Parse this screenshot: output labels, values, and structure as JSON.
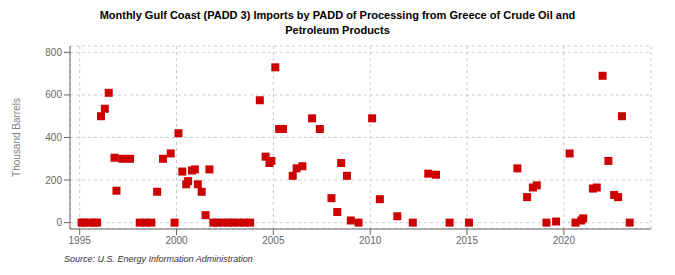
{
  "chart_data": {
    "type": "scatter",
    "title": "Monthly Gulf Coast (PADD 3) Imports by PADD of Processing from Greece of Crude Oil and\nPetroleum Products",
    "ylabel": "Thousand Barrels",
    "annotations": [
      "Source: U.S. Energy Information Administration"
    ],
    "color": "#cc0000",
    "marker": "square",
    "grid": true,
    "xlim": [
      1994.5,
      2024.5
    ],
    "ylim": [
      -30,
      830
    ],
    "xticks": [
      1995,
      2000,
      2005,
      2010,
      2015,
      2020
    ],
    "yticks": [
      0,
      200,
      400,
      600,
      800
    ],
    "x": [
      1995.1,
      1995.25,
      1995.5,
      1995.75,
      1995.9,
      1996.1,
      1996.3,
      1996.5,
      1996.8,
      1996.9,
      1997.2,
      1997.6,
      1998.1,
      1998.4,
      1998.7,
      1999.0,
      1999.3,
      1999.7,
      1999.9,
      2000.1,
      2000.3,
      2000.5,
      2000.6,
      2000.8,
      2000.95,
      2001.1,
      2001.3,
      2001.5,
      2001.7,
      2001.9,
      2002.1,
      2002.4,
      2002.7,
      2002.9,
      2003.2,
      2003.5,
      2003.8,
      2004.3,
      2004.6,
      2004.8,
      2004.9,
      2005.1,
      2005.3,
      2005.5,
      2006.0,
      2006.2,
      2006.5,
      2007.0,
      2007.4,
      2008.0,
      2008.3,
      2008.5,
      2008.8,
      2009.0,
      2009.4,
      2010.1,
      2010.5,
      2011.4,
      2012.2,
      2013.0,
      2013.4,
      2014.1,
      2015.1,
      2017.6,
      2018.1,
      2018.4,
      2018.6,
      2019.1,
      2019.6,
      2020.3,
      2020.6,
      2020.9,
      2021.0,
      2021.5,
      2021.7,
      2022.0,
      2022.3,
      2022.6,
      2022.8,
      2023.0,
      2023.4
    ],
    "values": [
      0,
      0,
      0,
      0,
      0,
      500,
      535,
      610,
      305,
      150,
      300,
      300,
      0,
      0,
      0,
      145,
      300,
      325,
      0,
      420,
      240,
      180,
      195,
      245,
      250,
      180,
      145,
      35,
      250,
      0,
      0,
      0,
      0,
      0,
      0,
      0,
      0,
      575,
      310,
      280,
      290,
      730,
      440,
      440,
      220,
      255,
      265,
      490,
      440,
      115,
      50,
      280,
      220,
      10,
      0,
      490,
      110,
      30,
      0,
      230,
      225,
      0,
      0,
      255,
      120,
      165,
      175,
      0,
      5,
      325,
      0,
      10,
      20,
      160,
      165,
      690,
      290,
      130,
      120,
      500,
      0
    ]
  }
}
